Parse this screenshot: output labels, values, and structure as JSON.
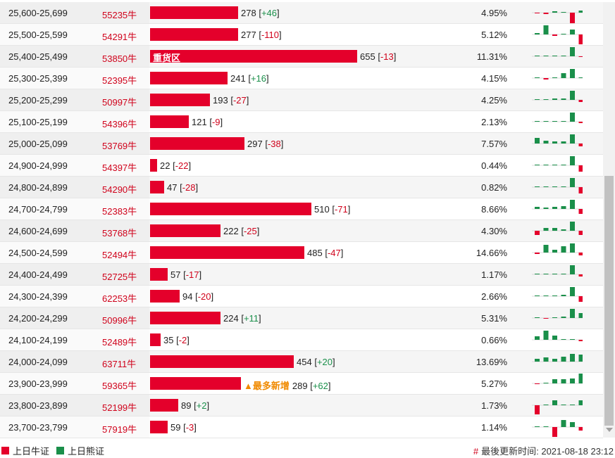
{
  "rows": [
    {
      "range": "25,600-25,699",
      "code": "55235牛",
      "count": "278",
      "change": "+46",
      "pct": "4.95%",
      "ratio": 0.25,
      "heavy": false,
      "most": false,
      "spark": [
        -1,
        -2,
        2,
        1,
        -16,
        3
      ]
    },
    {
      "range": "25,500-25,599",
      "code": "54291牛",
      "count": "277",
      "change": "-110",
      "pct": "5.12%",
      "ratio": 0.25,
      "heavy": false,
      "most": false,
      "spark": [
        2,
        13,
        -2,
        1,
        7,
        -14
      ]
    },
    {
      "range": "25,400-25,499",
      "code": "53850牛",
      "count": "655",
      "change": "-13",
      "pct": "11.31%",
      "ratio": 0.59,
      "heavy": true,
      "most": false,
      "spark": [
        1,
        1,
        1,
        1,
        13,
        -1
      ]
    },
    {
      "range": "25,300-25,399",
      "code": "52395牛",
      "count": "241",
      "change": "+16",
      "pct": "4.15%",
      "ratio": 0.22,
      "heavy": false,
      "most": false,
      "spark": [
        1,
        -2,
        1,
        7,
        13,
        1
      ]
    },
    {
      "range": "25,200-25,299",
      "code": "50997牛",
      "count": "193",
      "change": "-27",
      "pct": "4.25%",
      "ratio": 0.17,
      "heavy": false,
      "most": false,
      "spark": [
        1,
        1,
        2,
        2,
        13,
        -3
      ]
    },
    {
      "range": "25,100-25,199",
      "code": "54396牛",
      "count": "121",
      "change": "-9",
      "pct": "2.13%",
      "ratio": 0.11,
      "heavy": false,
      "most": false,
      "spark": [
        1,
        1,
        1,
        1,
        13,
        -2
      ]
    },
    {
      "range": "25,000-25,099",
      "code": "53769牛",
      "count": "297",
      "change": "-38",
      "pct": "7.57%",
      "ratio": 0.27,
      "heavy": false,
      "most": false,
      "spark": [
        8,
        4,
        3,
        3,
        13,
        -4
      ]
    },
    {
      "range": "24,900-24,999",
      "code": "54397牛",
      "count": "22",
      "change": "-22",
      "pct": "0.44%",
      "ratio": 0.02,
      "heavy": false,
      "most": false,
      "spark": [
        1,
        0,
        1,
        1,
        13,
        -9
      ]
    },
    {
      "range": "24,800-24,899",
      "code": "54290牛",
      "count": "47",
      "change": "-28",
      "pct": "0.82%",
      "ratio": 0.04,
      "heavy": false,
      "most": false,
      "spark": [
        0,
        0,
        1,
        1,
        13,
        -9
      ]
    },
    {
      "range": "24,700-24,799",
      "code": "52383牛",
      "count": "510",
      "change": "-71",
      "pct": "8.66%",
      "ratio": 0.46,
      "heavy": false,
      "most": false,
      "spark": [
        3,
        2,
        3,
        4,
        13,
        -7
      ]
    },
    {
      "range": "24,600-24,699",
      "code": "53768牛",
      "count": "222",
      "change": "-25",
      "pct": "4.30%",
      "ratio": 0.2,
      "heavy": false,
      "most": false,
      "spark": [
        -6,
        4,
        4,
        2,
        13,
        -6
      ]
    },
    {
      "range": "24,500-24,599",
      "code": "52494牛",
      "count": "485",
      "change": "-47",
      "pct": "14.66%",
      "ratio": 0.44,
      "heavy": false,
      "most": false,
      "spark": [
        -2,
        11,
        4,
        9,
        13,
        -4
      ]
    },
    {
      "range": "24,400-24,499",
      "code": "52725牛",
      "count": "57",
      "change": "-17",
      "pct": "1.17%",
      "ratio": 0.05,
      "heavy": false,
      "most": false,
      "spark": [
        1,
        1,
        1,
        1,
        13,
        -3
      ]
    },
    {
      "range": "24,300-24,399",
      "code": "62253牛",
      "count": "94",
      "change": "-20",
      "pct": "2.66%",
      "ratio": 0.085,
      "heavy": false,
      "most": false,
      "spark": [
        1,
        1,
        1,
        2,
        13,
        -8
      ]
    },
    {
      "range": "24,200-24,299",
      "code": "50996牛",
      "count": "224",
      "change": "+11",
      "pct": "5.31%",
      "ratio": 0.2,
      "heavy": false,
      "most": false,
      "spark": [
        1,
        -1,
        1,
        2,
        13,
        7
      ]
    },
    {
      "range": "24,100-24,199",
      "code": "52489牛",
      "count": "35",
      "change": "-2",
      "pct": "0.66%",
      "ratio": 0.03,
      "heavy": false,
      "most": false,
      "spark": [
        5,
        13,
        6,
        1,
        1,
        -2
      ]
    },
    {
      "range": "24,000-24,099",
      "code": "63711牛",
      "count": "454",
      "change": "+20",
      "pct": "13.69%",
      "ratio": 0.41,
      "heavy": false,
      "most": false,
      "spark": [
        4,
        6,
        4,
        7,
        11,
        10
      ]
    },
    {
      "range": "23,900-23,999",
      "code": "59365牛",
      "count": "289",
      "change": "+62",
      "pct": "5.27%",
      "ratio": 0.26,
      "heavy": false,
      "most": true,
      "spark": [
        -1,
        0,
        6,
        6,
        7,
        14
      ]
    },
    {
      "range": "23,800-23,899",
      "code": "52199牛",
      "count": "89",
      "change": "+2",
      "pct": "1.73%",
      "ratio": 0.08,
      "heavy": false,
      "most": false,
      "spark": [
        -13,
        0,
        7,
        1,
        1,
        7
      ]
    },
    {
      "range": "23,700-23,799",
      "code": "57919牛",
      "count": "59",
      "change": "-3",
      "pct": "1.14%",
      "ratio": 0.05,
      "heavy": false,
      "most": false,
      "spark": [
        0,
        0,
        -14,
        10,
        7,
        -5
      ]
    }
  ],
  "labels": {
    "heavy_zone": "重货区",
    "most_added": "▲最多新增"
  },
  "legend": {
    "bull": "上日牛证",
    "bear": "上日熊证"
  },
  "update": {
    "hash": "#",
    "text": "最後更新时间: 2021-08-18 23:12"
  },
  "colors": {
    "bull": "#e4002b",
    "bear": "#1a8f4a",
    "accent": "#d0021b"
  }
}
